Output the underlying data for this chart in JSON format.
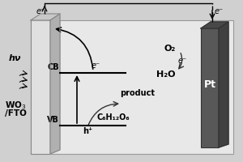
{
  "bg_color": "#d0d0d0",
  "solution_color": "#e8e8e8",
  "wto_front_color": "#e0e0e0",
  "wto_side_color": "#b0b0b0",
  "wto_top_color": "#c8c8c8",
  "pt_front_color": "#585858",
  "pt_side_color": "#404040",
  "pt_top_color": "#484848",
  "text_color": "#000000",
  "arrow_color": "#000000",
  "wto_label_line1": "WO",
  "wto_label_line2": "/FTO",
  "wto_sub": "3",
  "pt_label": "Pt",
  "hv_label": "hν",
  "cb_label": "CB",
  "vb_label": "VB",
  "e_label": "e⁻",
  "o2_label": "O₂",
  "h2o_label": "H₂O",
  "product_label": "product",
  "glucose_label": "C₆H₁₂O₆",
  "h_plus_label": "h⁺",
  "figsize": [
    3.0,
    2.0
  ],
  "dpi": 100
}
